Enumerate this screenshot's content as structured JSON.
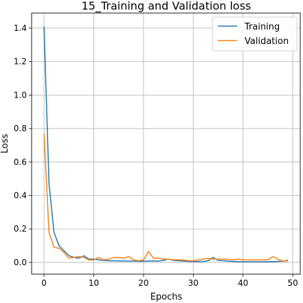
{
  "chart_data": {
    "type": "line",
    "title": "15_Training and Validation loss",
    "xlabel": "Epochs",
    "ylabel": "Loss",
    "xlim": [
      -2.5,
      51.5
    ],
    "ylim": [
      -0.07,
      1.49
    ],
    "xticks": [
      0,
      10,
      20,
      30,
      40,
      50
    ],
    "yticks": [
      0.0,
      0.2,
      0.4,
      0.6,
      0.8,
      1.0,
      1.2,
      1.4
    ],
    "xtick_labels": [
      "0",
      "10",
      "20",
      "30",
      "40",
      "50"
    ],
    "ytick_labels": [
      "0.0",
      "0.2",
      "0.4",
      "0.6",
      "0.8",
      "1.0",
      "1.2",
      "1.4"
    ],
    "grid": true,
    "legend_position": "top-right",
    "x": [
      0,
      1,
      2,
      3,
      4,
      5,
      6,
      7,
      8,
      9,
      10,
      11,
      12,
      13,
      14,
      15,
      16,
      17,
      18,
      19,
      20,
      21,
      22,
      23,
      24,
      25,
      26,
      27,
      28,
      29,
      30,
      31,
      32,
      33,
      34,
      35,
      36,
      37,
      38,
      39,
      40,
      41,
      42,
      43,
      44,
      45,
      46,
      47,
      48,
      49
    ],
    "series": [
      {
        "name": "Training",
        "color": "#1f77b4",
        "values": [
          1.41,
          0.47,
          0.18,
          0.1,
          0.07,
          0.04,
          0.03,
          0.025,
          0.04,
          0.02,
          0.02,
          0.015,
          0.012,
          0.01,
          0.01,
          0.009,
          0.009,
          0.008,
          0.008,
          0.007,
          0.007,
          0.008,
          0.009,
          0.008,
          0.012,
          0.02,
          0.012,
          0.01,
          0.008,
          0.006,
          0.006,
          0.005,
          0.006,
          0.01,
          0.03,
          0.012,
          0.01,
          0.008,
          0.006,
          0.005,
          0.004,
          0.004,
          0.004,
          0.004,
          0.004,
          0.004,
          0.005,
          0.006,
          0.008,
          0.01
        ]
      },
      {
        "name": "Validation",
        "color": "#ff7f0e",
        "values": [
          0.77,
          0.18,
          0.09,
          0.085,
          0.06,
          0.025,
          0.03,
          0.035,
          0.03,
          0.015,
          0.015,
          0.03,
          0.015,
          0.02,
          0.03,
          0.03,
          0.025,
          0.035,
          0.015,
          0.01,
          0.015,
          0.065,
          0.025,
          0.025,
          0.02,
          0.02,
          0.015,
          0.015,
          0.015,
          0.01,
          0.01,
          0.015,
          0.02,
          0.025,
          0.02,
          0.02,
          0.02,
          0.02,
          0.015,
          0.02,
          0.015,
          0.015,
          0.015,
          0.015,
          0.015,
          0.015,
          0.035,
          0.02,
          0.005,
          0.015
        ]
      }
    ]
  }
}
